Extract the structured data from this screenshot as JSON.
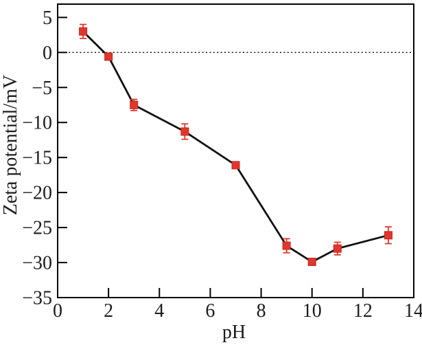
{
  "chart_data": {
    "type": "line",
    "title": "",
    "xlabel": "pH",
    "ylabel": "Zeta potential/mV",
    "x": [
      1,
      2,
      3,
      5,
      7,
      9,
      10,
      11,
      13
    ],
    "y": [
      3.0,
      -0.6,
      -7.5,
      -11.3,
      -16.1,
      -27.6,
      -29.9,
      -28.0,
      -26.1
    ],
    "yerr": [
      1.0,
      0.3,
      0.8,
      1.1,
      0.4,
      1.0,
      0.4,
      0.9,
      1.2
    ],
    "xlim": [
      0,
      14
    ],
    "ylim": [
      -35,
      6.9
    ],
    "xticks": [
      0,
      2,
      4,
      6,
      8,
      10,
      12,
      14
    ],
    "yticks": [
      5,
      0,
      -5,
      -10,
      -15,
      -20,
      -25,
      -30,
      -35
    ],
    "grid": false,
    "legend": null,
    "zero_line": {
      "y": 0,
      "style": "dotted"
    },
    "marker": {
      "shape": "square",
      "color": "#e0372d",
      "edge_color": "#c8241d",
      "size": 11
    },
    "line": {
      "color": "#111111",
      "width": 2.8
    },
    "error_bar": {
      "color": "#e0372d",
      "cap_width": 10
    },
    "frame_color": "#000000",
    "background": "#ffffff"
  }
}
